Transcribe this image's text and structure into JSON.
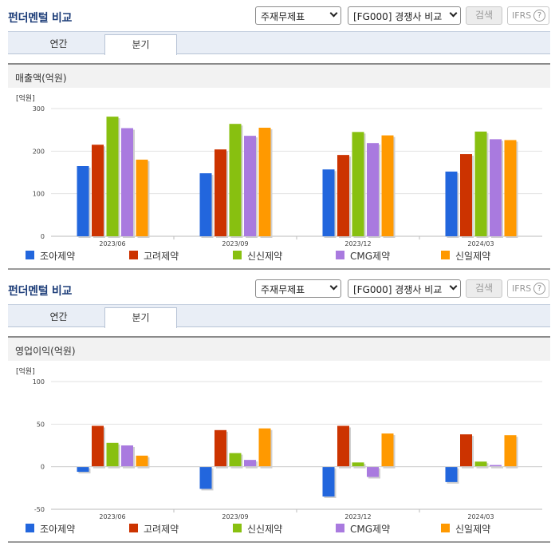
{
  "colors": {
    "series": [
      "#2266dd",
      "#cc3300",
      "#88c010",
      "#a97adf",
      "#ff9900"
    ]
  },
  "panels": [
    {
      "title": "펀더멘털 비교",
      "select1": "주재무제표",
      "select2": "[FG000] 경쟁사 비교",
      "search_label": "검색",
      "ifrs_label": "IFRS",
      "help_label": "?",
      "tabs": [
        "연간",
        "분기"
      ],
      "active_tab": "분기",
      "section_title": "매출액(억원)",
      "chart_data": {
        "type": "bar",
        "unit_label": "[억원]",
        "categories": [
          "2023/06",
          "2023/09",
          "2023/12",
          "2024/03"
        ],
        "ylim": [
          0,
          300
        ],
        "yticks": [
          0,
          100,
          200,
          300
        ],
        "grid": true,
        "legend": "bottom",
        "series": [
          {
            "name": "조아제약",
            "values": [
              165,
              148,
              157,
              152
            ]
          },
          {
            "name": "고려제약",
            "values": [
              215,
              204,
              191,
              193
            ]
          },
          {
            "name": "신신제약",
            "values": [
              281,
              264,
              245,
              246
            ]
          },
          {
            "name": "CMG제약",
            "values": [
              254,
              236,
              219,
              228
            ]
          },
          {
            "name": "신일제약",
            "values": [
              180,
              255,
              237,
              226
            ]
          }
        ]
      }
    },
    {
      "title": "펀더멘털 비교",
      "select1": "주재무제표",
      "select2": "[FG000] 경쟁사 비교",
      "search_label": "검색",
      "ifrs_label": "IFRS",
      "help_label": "?",
      "tabs": [
        "연간",
        "분기"
      ],
      "active_tab": "분기",
      "section_title": "영업이익(억원)",
      "chart_data": {
        "type": "bar",
        "unit_label": "[억원]",
        "categories": [
          "2023/06",
          "2023/09",
          "2023/12",
          "2024/03"
        ],
        "ylim": [
          -50,
          100
        ],
        "yticks": [
          -50,
          0,
          50,
          100
        ],
        "grid": true,
        "legend": "bottom",
        "series": [
          {
            "name": "조아제약",
            "values": [
              -6,
              -26,
              -35,
              -18
            ]
          },
          {
            "name": "고려제약",
            "values": [
              48,
              43,
              48,
              38
            ]
          },
          {
            "name": "신신제약",
            "values": [
              28,
              16,
              5,
              6
            ]
          },
          {
            "name": "CMG제약",
            "values": [
              25,
              8,
              -12,
              2
            ]
          },
          {
            "name": "신일제약",
            "values": [
              13,
              45,
              39,
              37
            ]
          }
        ]
      }
    }
  ]
}
